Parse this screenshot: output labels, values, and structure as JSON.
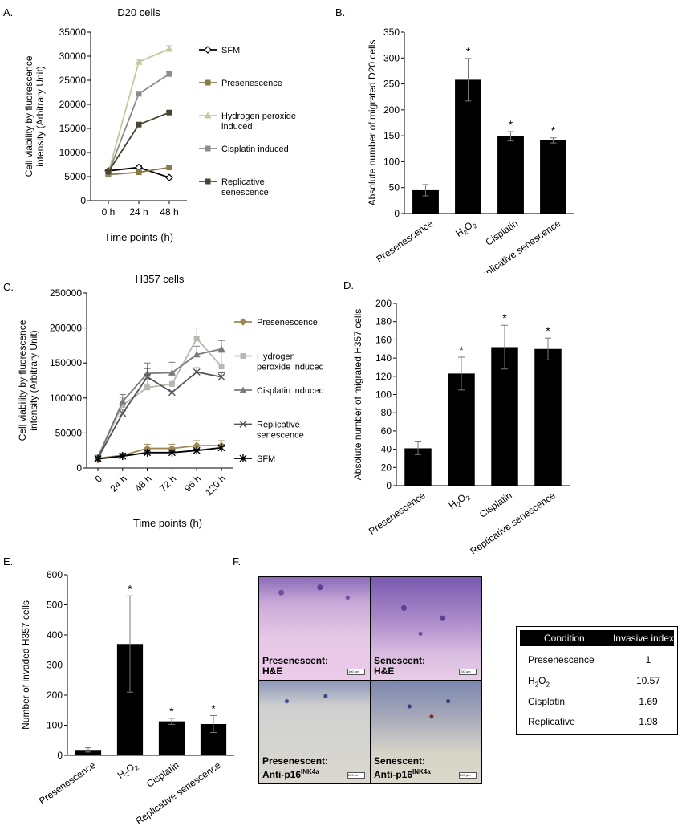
{
  "panels": {
    "A": "A.",
    "B": "B.",
    "C": "C.",
    "D": "D.",
    "E": "E.",
    "F": "F."
  },
  "chart_data": [
    {
      "id": "A",
      "type": "line",
      "title": "D20 cells",
      "xlabel": "Time points (h)",
      "ylabel": "Cell viability by fluorescence intensity (Arbitrary Unit)",
      "ylabel_lines": [
        "Cell viability by fluorescence",
        "intensity (Arbitrary Unit)"
      ],
      "categories": [
        "0 h",
        "24 h",
        "48 h"
      ],
      "ylim": [
        0,
        35000
      ],
      "yticks": [
        "0",
        "5000",
        "10000",
        "15000",
        "20000",
        "25000",
        "30000",
        "35000"
      ],
      "legend_position": "right",
      "series": [
        {
          "name": "SFM",
          "legend_lines": [
            "SFM"
          ],
          "values": [
            6200,
            6900,
            4800
          ],
          "errors": [
            300,
            300,
            200
          ],
          "color": "#000000",
          "marker": "diamond-open"
        },
        {
          "name": "Presenescence",
          "legend_lines": [
            "Presenescence"
          ],
          "values": [
            5400,
            5900,
            6900
          ],
          "errors": [
            300,
            300,
            300
          ],
          "color": "#8a7a4a",
          "marker": "square"
        },
        {
          "name": "Hydrogen peroxide induced",
          "legend_lines": [
            "Hydrogen peroxide",
            "induced"
          ],
          "values": [
            5800,
            28800,
            31500
          ],
          "errors": [
            300,
            400,
            700
          ],
          "color": "#c8c79e",
          "marker": "triangle"
        },
        {
          "name": "Cisplatin induced",
          "legend_lines": [
            "Cisplatin induced"
          ],
          "values": [
            5700,
            22200,
            26300
          ],
          "errors": [
            300,
            400,
            400
          ],
          "color": "#8c8c8c",
          "marker": "square"
        },
        {
          "name": "Replicative senescence",
          "legend_lines": [
            "Replicative",
            "senescence"
          ],
          "values": [
            6000,
            15800,
            18300
          ],
          "errors": [
            300,
            400,
            300
          ],
          "color": "#4a4530",
          "marker": "square"
        }
      ]
    },
    {
      "id": "B",
      "type": "bar",
      "title": "",
      "ylabel": "Absolute number of migrated D20 cells",
      "categories": [
        "Presenescence",
        "H2O2",
        "Cisplatin",
        "Replicative senescence"
      ],
      "values": [
        45,
        258,
        149,
        141
      ],
      "errors": [
        11,
        41,
        9,
        5
      ],
      "significant": [
        "",
        "*",
        "*",
        "*"
      ],
      "ylim": [
        0,
        350
      ],
      "yticks": [
        "0",
        "50",
        "100",
        "150",
        "200",
        "250",
        "300",
        "350"
      ]
    },
    {
      "id": "C",
      "type": "line",
      "title": "H357 cells",
      "xlabel": "Time points (h)",
      "ylabel": "Cell viability by fluorescence intensity (Arbitrary Unit)",
      "ylabel_lines": [
        "Cell viability by fluorescence",
        "intensity (Arbitrary Unit)"
      ],
      "categories": [
        "0",
        "24 h",
        "48 h",
        "72 h",
        "96 h",
        "120 h"
      ],
      "ylim": [
        0,
        250000
      ],
      "yticks": [
        "0",
        "50000",
        "100000",
        "150000",
        "200000",
        "250000"
      ],
      "legend_position": "right",
      "series": [
        {
          "name": "Presenescence",
          "legend_lines": [
            "Presenescence"
          ],
          "values": [
            14000,
            18000,
            28000,
            28000,
            32000,
            32000
          ],
          "errors": [
            2000,
            3000,
            6000,
            6000,
            7000,
            7000
          ],
          "color": "#9c8a55",
          "marker": "diamond"
        },
        {
          "name": "Hydrogen peroxide induced",
          "legend_lines": [
            "Hydrogen",
            "peroxide induced"
          ],
          "values": [
            15000,
            90000,
            115000,
            120000,
            185000,
            145000
          ],
          "errors": [
            2000,
            10000,
            15000,
            15000,
            15000,
            20000
          ],
          "color": "#b8b8b0",
          "marker": "square"
        },
        {
          "name": "Cisplatin induced",
          "legend_lines": [
            "Cisplatin induced"
          ],
          "values": [
            15000,
            95000,
            135000,
            136000,
            162000,
            170000
          ],
          "errors": [
            2000,
            10000,
            15000,
            15000,
            12000,
            12000
          ],
          "color": "#7a7a7a",
          "marker": "triangle"
        },
        {
          "name": "Replicative senescence",
          "legend_lines": [
            "Replicative",
            "senescence"
          ],
          "values": [
            14000,
            78000,
            130000,
            108000,
            137000,
            130000
          ],
          "errors": [
            2000,
            6000,
            12000,
            5000,
            6000,
            6000
          ],
          "color": "#555555",
          "marker": "x"
        },
        {
          "name": "SFM",
          "legend_lines": [
            "SFM"
          ],
          "values": [
            13000,
            17000,
            22000,
            22000,
            25000,
            29000
          ],
          "errors": [
            1000,
            1500,
            2000,
            2000,
            2000,
            2000
          ],
          "color": "#000000",
          "marker": "star"
        }
      ]
    },
    {
      "id": "D",
      "type": "bar",
      "title": "",
      "ylabel": "Absolute number of migrated H357 cells",
      "categories": [
        "Presenescence",
        "H2O2",
        "Cisplatin",
        "Replicative senescence"
      ],
      "values": [
        41,
        123,
        152,
        150
      ],
      "errors": [
        7,
        18,
        24,
        12
      ],
      "significant": [
        "",
        "*",
        "*",
        "*"
      ],
      "ylim": [
        0,
        200
      ],
      "yticks": [
        "0",
        "20",
        "40",
        "60",
        "80",
        "100",
        "120",
        "140",
        "160",
        "180",
        "200"
      ]
    },
    {
      "id": "E",
      "type": "bar",
      "title": "",
      "ylabel": "Number of invaded H357 cells",
      "categories": [
        "Presenescence",
        "H2O2",
        "Cisplatin",
        "Replicative senescence"
      ],
      "values": [
        18,
        370,
        113,
        104
      ],
      "errors": [
        7,
        160,
        10,
        28
      ],
      "significant": [
        "",
        "*",
        "*",
        "*"
      ],
      "ylim": [
        0,
        600
      ],
      "yticks": [
        "0",
        "100",
        "200",
        "300",
        "400",
        "500",
        "600"
      ]
    }
  ],
  "micrographs": [
    {
      "caption_1": "Presenescent:",
      "caption_2": "H&E",
      "scale": "100 µm"
    },
    {
      "caption_1": "Senescent:",
      "caption_2": "H&E",
      "scale": "100 µm"
    },
    {
      "caption_1": "Presenescent:",
      "caption_2": "Anti-p16",
      "sup": "INK4a",
      "scale": "200 µm"
    },
    {
      "caption_1": "Senescent:",
      "caption_2": "Anti-p16",
      "sup": "INK4a",
      "scale": "200 µm"
    }
  ],
  "table": {
    "headers": [
      "Condition",
      "Invasive index"
    ],
    "rows": [
      {
        "condition": "Presenescence",
        "index": "1"
      },
      {
        "condition": "H2O2",
        "index": "10.57"
      },
      {
        "condition": "Cisplatin",
        "index": "1.69"
      },
      {
        "condition": "Replicative",
        "index": "1.98"
      }
    ]
  }
}
